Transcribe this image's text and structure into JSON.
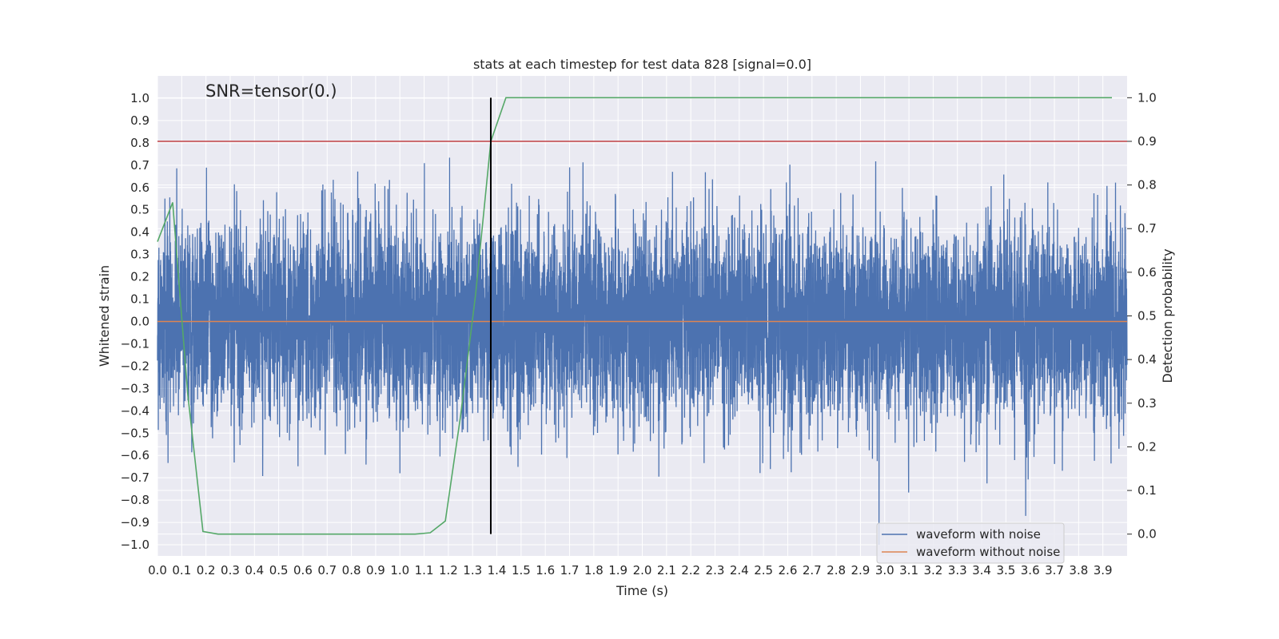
{
  "chart_data": {
    "type": "line",
    "title": "stats at each timestep for test data 828 [signal=0.0]",
    "xlabel": "Time (s)",
    "ylabel": "Whitened strain",
    "y2label": "Detection probability",
    "annotation": "SNR=tensor(0.)",
    "xlim": [
      0.0,
      4.0
    ],
    "ylim": [
      -1.05,
      1.1
    ],
    "y2lim": [
      -0.05,
      1.05
    ],
    "xticks": [
      "0.0",
      "0.1",
      "0.2",
      "0.3",
      "0.4",
      "0.5",
      "0.6",
      "0.7",
      "0.8",
      "0.9",
      "1.0",
      "1.1",
      "1.2",
      "1.3",
      "1.4",
      "1.5",
      "1.6",
      "1.7",
      "1.8",
      "1.9",
      "2.0",
      "2.1",
      "2.2",
      "2.3",
      "2.4",
      "2.5",
      "2.6",
      "2.7",
      "2.8",
      "2.9",
      "3.0",
      "3.1",
      "3.2",
      "3.3",
      "3.4",
      "3.5",
      "3.6",
      "3.7",
      "3.8",
      "3.9"
    ],
    "yticks": [
      "1.0",
      "0.9",
      "0.8",
      "0.7",
      "0.6",
      "0.5",
      "0.4",
      "0.3",
      "0.2",
      "0.1",
      "0.0",
      "−0.1",
      "−0.2",
      "−0.3",
      "−0.4",
      "−0.5",
      "−0.6",
      "−0.7",
      "−0.8",
      "−0.9",
      "−1.0"
    ],
    "y2ticks": [
      "1.0",
      "0.9",
      "0.8",
      "0.7",
      "0.6",
      "0.5",
      "0.4",
      "0.3",
      "0.2",
      "0.1",
      "0.0"
    ],
    "series": [
      {
        "name": "waveform with noise",
        "color": "#4c72b0",
        "axis": "left",
        "kind": "noise",
        "sample_rate": 2048,
        "duration": 4.0,
        "std": 0.22,
        "range": [
          -1.0,
          1.0
        ],
        "seed": 828
      },
      {
        "name": "waveform without noise",
        "color": "#dd8452",
        "axis": "left",
        "x": [
          0.0,
          4.0
        ],
        "y": [
          0.0,
          0.0
        ]
      },
      {
        "name": "detection probability",
        "color": "#55a868",
        "axis": "right",
        "x": [
          0.0,
          0.0625,
          0.125,
          0.1875,
          0.25,
          0.3125,
          0.375,
          0.4375,
          0.5,
          0.5625,
          0.625,
          0.6875,
          0.75,
          0.8125,
          0.875,
          0.9375,
          1.0,
          1.0625,
          1.125,
          1.1875,
          1.25,
          1.3125,
          1.375,
          1.4375,
          1.5,
          1.5625,
          1.625,
          1.6875,
          1.75,
          1.8125,
          1.875,
          1.9375,
          2.0,
          2.0625,
          2.125,
          2.1875,
          2.25,
          2.3125,
          2.375,
          2.4375,
          2.5,
          2.5625,
          2.625,
          2.6875,
          2.75,
          2.8125,
          2.875,
          2.9375,
          3.0,
          3.0625,
          3.125,
          3.1875,
          3.25,
          3.3125,
          3.375,
          3.4375,
          3.5,
          3.5625,
          3.625,
          3.6875,
          3.75,
          3.8125,
          3.875,
          3.9375
        ],
        "y": [
          0.67,
          0.76,
          0.32,
          0.006,
          0.0,
          0.0,
          0.0,
          0.0,
          0.0,
          0.0,
          0.0,
          0.0,
          0.0,
          0.0,
          0.0,
          0.0,
          0.0,
          0.0,
          0.003,
          0.03,
          0.27,
          0.55,
          0.9,
          1.0,
          1.0,
          1.0,
          1.0,
          1.0,
          1.0,
          1.0,
          1.0,
          1.0,
          1.0,
          1.0,
          1.0,
          1.0,
          1.0,
          1.0,
          1.0,
          1.0,
          1.0,
          1.0,
          1.0,
          1.0,
          1.0,
          1.0,
          1.0,
          1.0,
          1.0,
          1.0,
          1.0,
          1.0,
          1.0,
          1.0,
          1.0,
          1.0,
          1.0,
          1.0,
          1.0,
          1.0,
          1.0,
          1.0,
          1.0,
          1.0
        ]
      }
    ],
    "threshold": {
      "axis": "right",
      "value": 0.9,
      "color": "#c44e52"
    },
    "detection_time": {
      "x": 1.375,
      "y2_range": [
        0.0,
        1.0
      ],
      "color": "#000000"
    },
    "legend": {
      "position": "lower-right",
      "entries": [
        {
          "label": "waveform with noise",
          "color": "#4c72b0"
        },
        {
          "label": "waveform without noise",
          "color": "#dd8452"
        }
      ]
    },
    "style": {
      "background": "#eaeaf2",
      "grid": true,
      "grid_color": "#ffffff"
    }
  }
}
